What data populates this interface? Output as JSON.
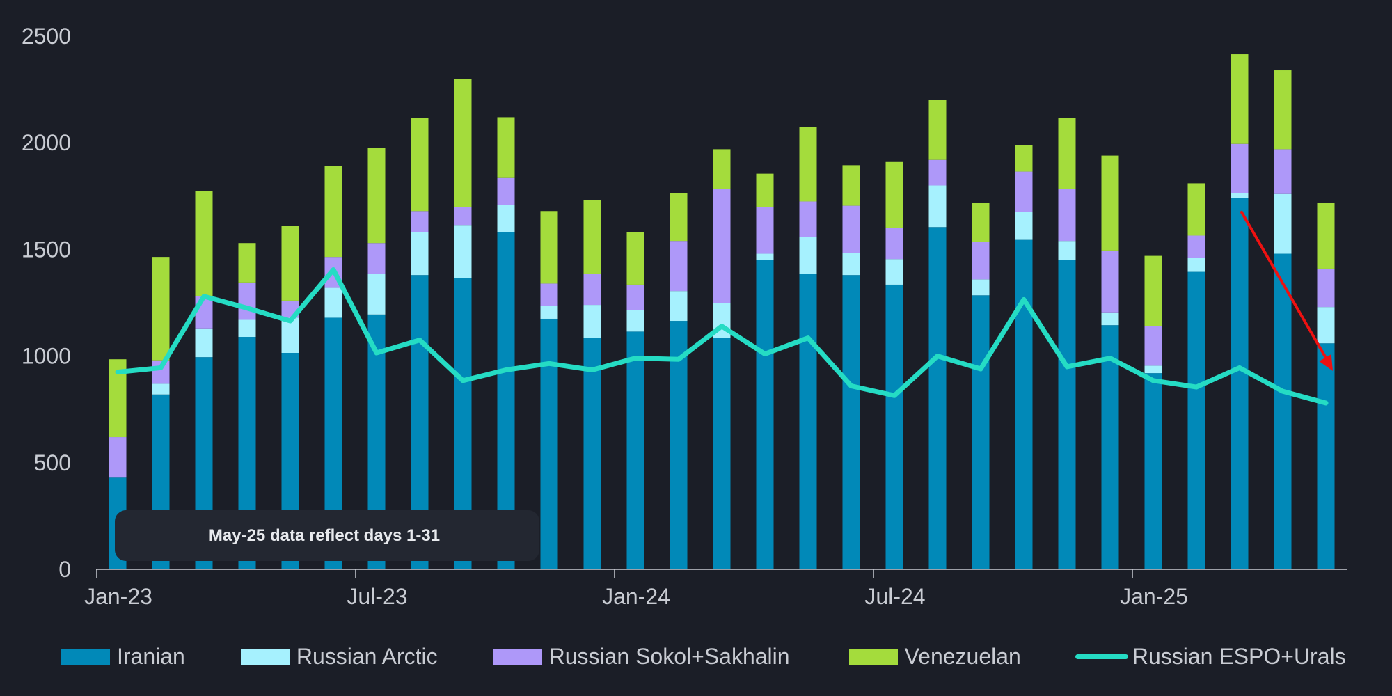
{
  "chart_data": {
    "type": "bar",
    "stacked": true,
    "title": "",
    "xlabel": "",
    "ylabel": "",
    "ylim": [
      0,
      2500
    ],
    "y_ticks": [
      "0",
      "500",
      "1000",
      "1500",
      "2000",
      "2500"
    ],
    "x_tick_labels": [
      {
        "label": "Jan-23",
        "index": 0
      },
      {
        "label": "Jul-23",
        "index": 6
      },
      {
        "label": "Jan-24",
        "index": 12
      },
      {
        "label": "Jul-24",
        "index": 18
      },
      {
        "label": "Jan-25",
        "index": 24
      }
    ],
    "categories": [
      "Jan-23",
      "Feb-23",
      "Mar-23",
      "Apr-23",
      "May-23",
      "Jun-23",
      "Jul-23",
      "Aug-23",
      "Sep-23",
      "Oct-23",
      "Nov-23",
      "Dec-23",
      "Jan-24",
      "Feb-24",
      "Mar-24",
      "Apr-24",
      "May-24",
      "Jun-24",
      "Jul-24",
      "Aug-24",
      "Sep-24",
      "Oct-24",
      "Nov-24",
      "Dec-24",
      "Jan-25",
      "Feb-25",
      "Mar-25",
      "Apr-25",
      "May-25"
    ],
    "series": [
      {
        "name": "Iranian",
        "color": "#0189b8",
        "type": "bar",
        "values": [
          430,
          820,
          995,
          1090,
          1015,
          1180,
          1195,
          1380,
          1365,
          1580,
          1175,
          1085,
          1115,
          1165,
          1085,
          1450,
          1385,
          1380,
          1335,
          1605,
          1285,
          1545,
          1450,
          1145,
          920,
          1395,
          1740,
          1480,
          1060
        ]
      },
      {
        "name": "Russian Arctic",
        "color": "#a6f1fe",
        "type": "bar",
        "values": [
          0,
          50,
          135,
          80,
          165,
          140,
          190,
          200,
          250,
          130,
          60,
          155,
          100,
          140,
          165,
          30,
          175,
          105,
          120,
          195,
          75,
          130,
          90,
          60,
          35,
          65,
          25,
          280,
          170
        ]
      },
      {
        "name": "Russian Sokol+Sakhalin",
        "color": "#ae98f9",
        "type": "bar",
        "values": [
          190,
          110,
          150,
          175,
          80,
          145,
          145,
          100,
          85,
          125,
          105,
          145,
          120,
          235,
          535,
          220,
          165,
          220,
          145,
          120,
          175,
          190,
          245,
          290,
          185,
          105,
          230,
          210,
          180
        ]
      },
      {
        "name": "Venezuelan",
        "color": "#a4dc3c",
        "type": "bar",
        "values": [
          365,
          485,
          495,
          185,
          350,
          425,
          445,
          435,
          600,
          285,
          340,
          345,
          245,
          225,
          185,
          155,
          350,
          190,
          310,
          280,
          185,
          125,
          330,
          445,
          330,
          245,
          420,
          370,
          310
        ]
      },
      {
        "name": "Russian ESPO+Urals",
        "color": "#25dcc4",
        "type": "line",
        "values": [
          925,
          945,
          1280,
          1225,
          1165,
          1405,
          1015,
          1075,
          885,
          935,
          965,
          935,
          990,
          985,
          1140,
          1010,
          1085,
          860,
          815,
          1000,
          940,
          1265,
          950,
          990,
          885,
          855,
          945,
          835,
          780
        ]
      }
    ],
    "legend": {
      "position": "bottom",
      "labels": [
        "Iranian",
        "Russian Arctic",
        "Russian Sokol+Sakhalin",
        "Venezuelan",
        "Russian ESPO+Urals"
      ]
    },
    "annotation": "May-25 data reflect days 1-31",
    "arrow_color": "#ee1111",
    "grid": false
  }
}
